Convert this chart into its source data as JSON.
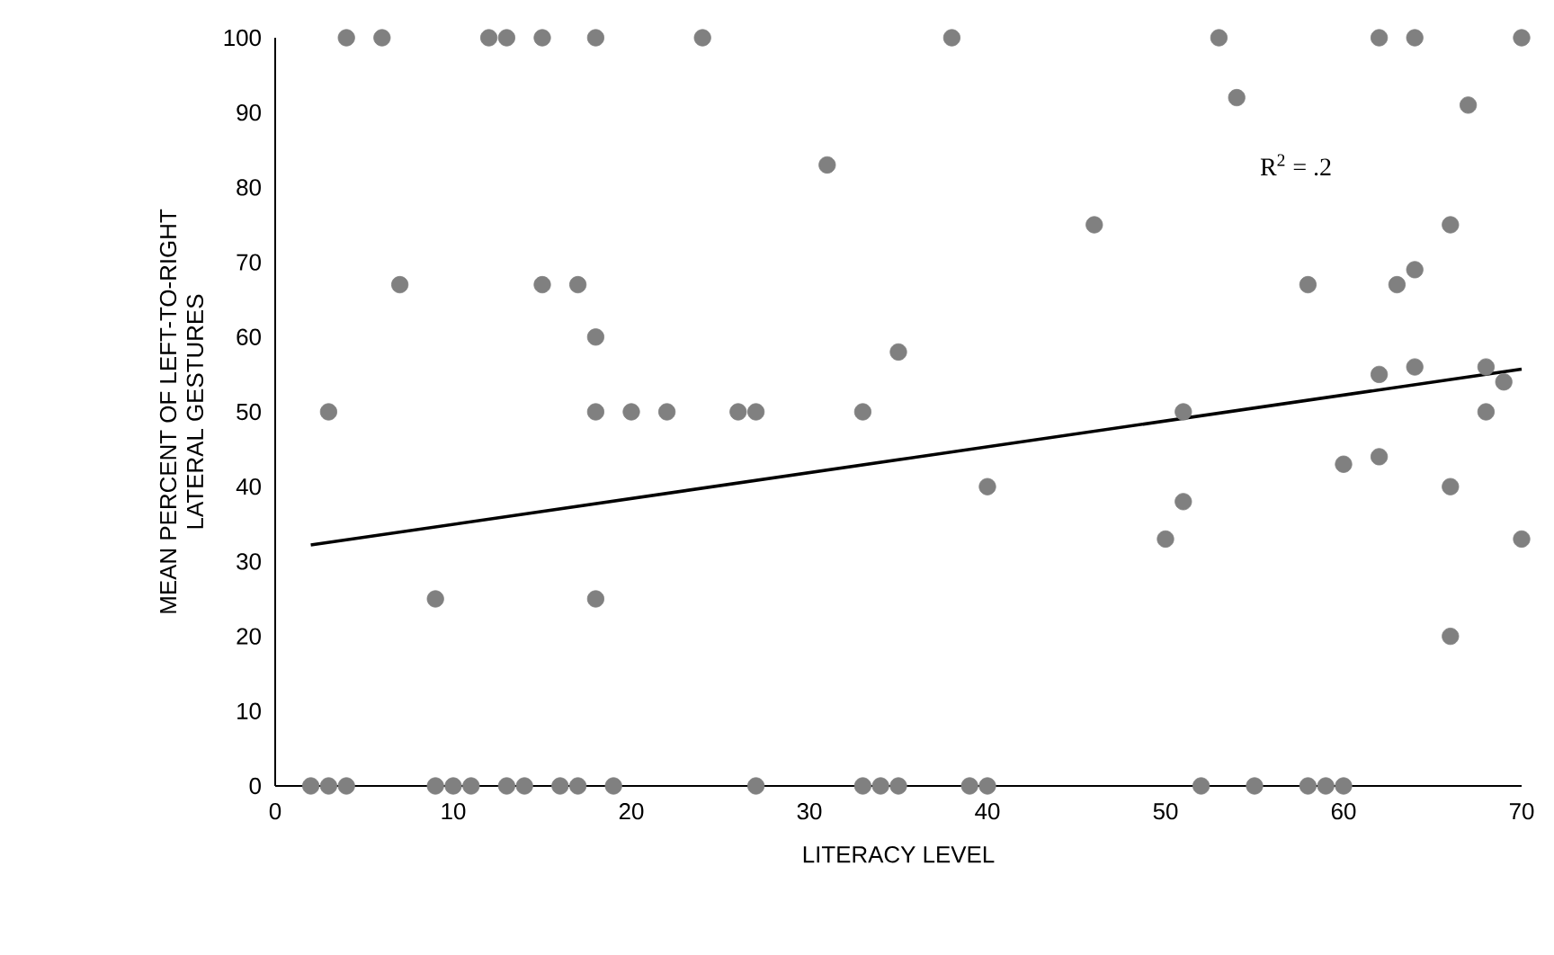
{
  "chart_data": {
    "type": "scatter",
    "xlabel": "LITERACY LEVEL",
    "ylabel": "MEAN PERCENT OF LEFT-TO-RIGHT LATERAL GESTURES",
    "xlim": [
      0,
      70
    ],
    "ylim": [
      0,
      100
    ],
    "xticks": [
      0,
      10,
      20,
      30,
      40,
      50,
      60,
      70
    ],
    "yticks": [
      0,
      10,
      20,
      30,
      40,
      50,
      60,
      70,
      80,
      90,
      100
    ],
    "grid": false,
    "annotations": [
      "R$^{2}$ = .2"
    ],
    "series": [
      {
        "color": "#808080",
        "marker": "circle",
        "x": [
          4,
          6,
          12,
          13,
          15,
          18,
          24,
          38,
          53,
          62,
          64,
          70,
          54,
          67,
          31,
          46,
          66,
          64,
          7,
          15,
          17,
          58,
          63,
          18,
          35,
          64,
          68,
          62,
          69,
          3,
          18,
          20,
          22,
          26,
          27,
          33,
          51,
          68,
          62,
          60,
          40,
          66,
          51,
          50,
          70,
          9,
          18,
          66,
          2,
          3,
          4,
          9,
          10,
          11,
          13,
          14,
          16,
          17,
          19,
          27,
          33,
          34,
          35,
          39,
          40,
          52,
          55,
          58,
          59,
          60
        ],
        "values": [
          100,
          100,
          100,
          100,
          100,
          100,
          100,
          100,
          100,
          100,
          100,
          100,
          92,
          91,
          83,
          75,
          75,
          69,
          67,
          67,
          67,
          67,
          67,
          60,
          58,
          56,
          56,
          55,
          54,
          50,
          50,
          50,
          50,
          50,
          50,
          50,
          50,
          50,
          44,
          43,
          40,
          40,
          38,
          33,
          33,
          25,
          25,
          20,
          0,
          0,
          0,
          0,
          0,
          0,
          0,
          0,
          0,
          0,
          0,
          0,
          0,
          0,
          0,
          0,
          0,
          0,
          0,
          0,
          0,
          0
        ]
      },
      {
        "type": "line",
        "color": "#000000",
        "line_style": "solid",
        "x": [
          2,
          70
        ],
        "values": [
          32.2,
          55.7
        ]
      }
    ]
  }
}
